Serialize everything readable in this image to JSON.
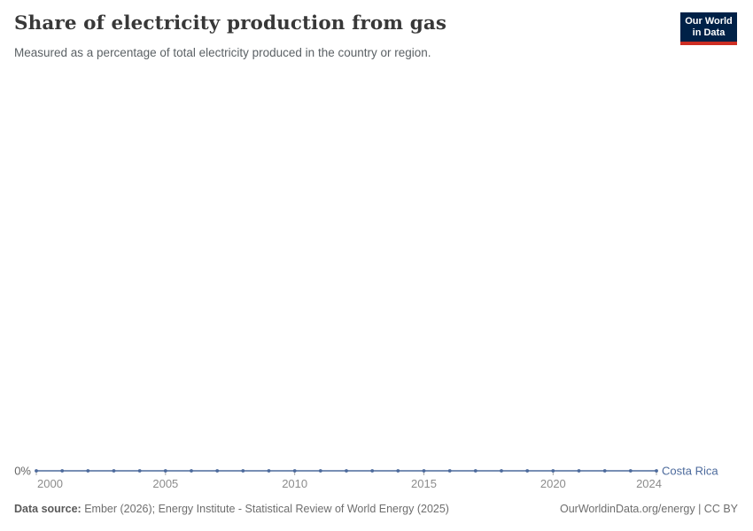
{
  "header": {
    "title": "Share of electricity production from gas",
    "subtitle": "Measured as a percentage of total electricity produced in the country or region."
  },
  "logo": {
    "line1": "Our World",
    "line2": "in Data",
    "bg_color": "#002147",
    "bar_color": "#cd2d23"
  },
  "chart_data": {
    "type": "line",
    "title": "Share of electricity production from gas",
    "xlabel": "",
    "ylabel": "",
    "x": [
      2000,
      2001,
      2002,
      2003,
      2004,
      2005,
      2006,
      2007,
      2008,
      2009,
      2010,
      2011,
      2012,
      2013,
      2014,
      2015,
      2016,
      2017,
      2018,
      2019,
      2020,
      2021,
      2022,
      2023,
      2024
    ],
    "series": [
      {
        "name": "Costa Rica",
        "color": "#4c6a9c",
        "values": [
          0,
          0,
          0,
          0,
          0,
          0,
          0,
          0,
          0,
          0,
          0,
          0,
          0,
          0,
          0,
          0,
          0,
          0,
          0,
          0,
          0,
          0,
          0,
          0,
          0
        ]
      }
    ],
    "x_ticks": [
      {
        "value": 2000,
        "label": "2000"
      },
      {
        "value": 2005,
        "label": "2005"
      },
      {
        "value": 2010,
        "label": "2010"
      },
      {
        "value": 2015,
        "label": "2015"
      },
      {
        "value": 2020,
        "label": "2020"
      },
      {
        "value": 2024,
        "label": "2024"
      }
    ],
    "y_ticks": [
      {
        "value": 0,
        "label": "0%"
      }
    ],
    "xlim": [
      2000,
      2024
    ],
    "ylim": [
      0,
      0
    ],
    "grid": false,
    "legend_position": "end-of-line",
    "axis_label_color": "#8c8c8c",
    "y_label_color": "#666666",
    "tick_color": "#a8a8a8"
  },
  "footer": {
    "data_source_label": "Data source:",
    "data_source_text": " Ember (2026); Energy Institute - Statistical Review of World Energy (2025)",
    "credit": "OurWorldinData.org/energy | CC BY"
  }
}
